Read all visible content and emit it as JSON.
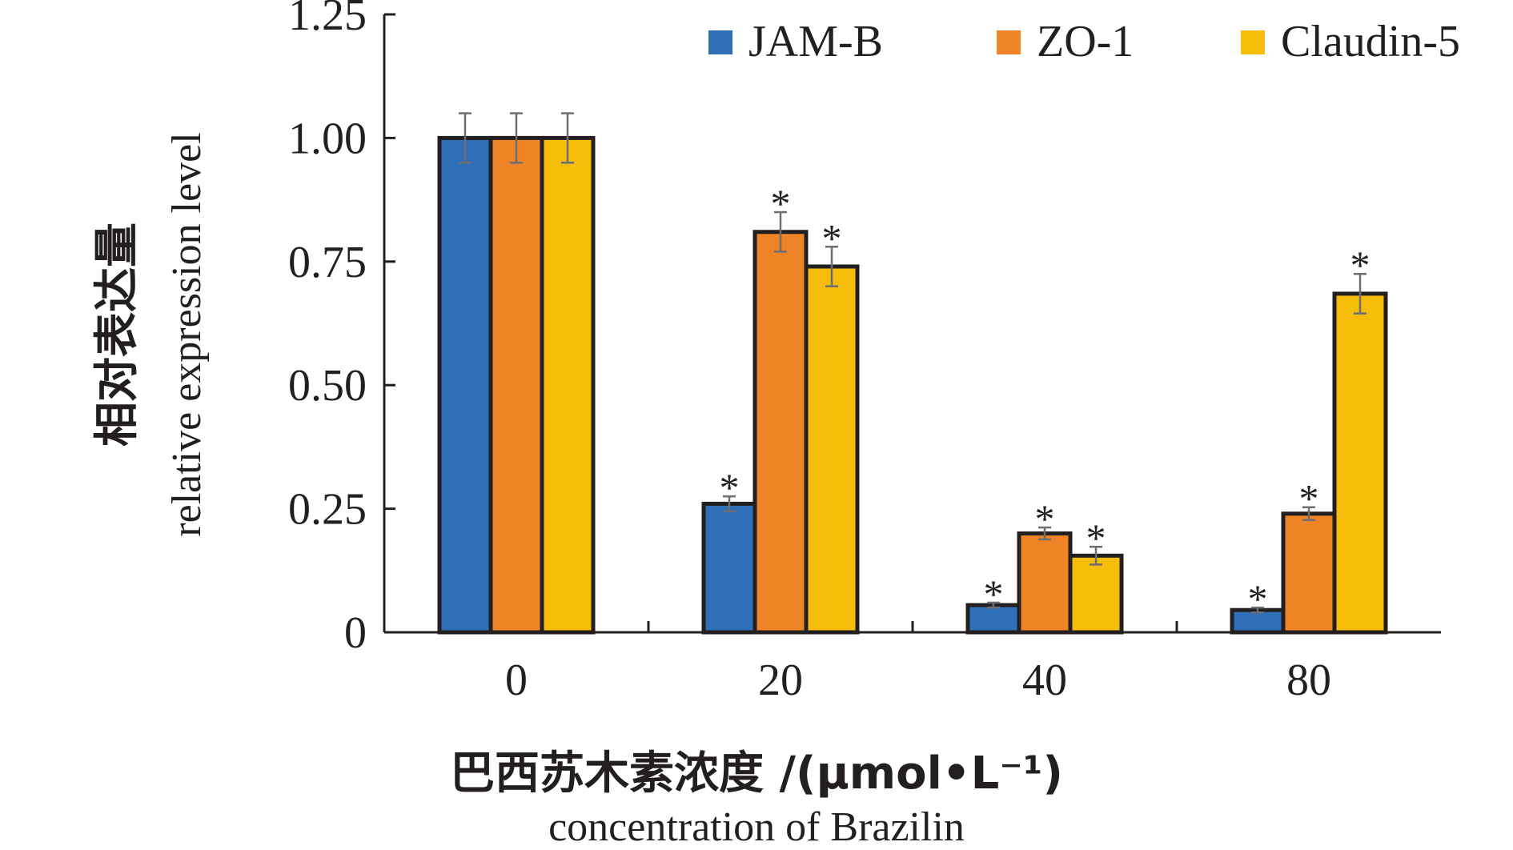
{
  "chart_data": {
    "type": "bar",
    "categories": [
      "0",
      "20",
      "40",
      "80"
    ],
    "series": [
      {
        "name": "JAM-B",
        "color": "#2e6fb7",
        "values": [
          1.0,
          0.26,
          0.055,
          0.045
        ],
        "errors": [
          0.05,
          0.015,
          0.005,
          0.005
        ],
        "significant": [
          false,
          true,
          true,
          true
        ]
      },
      {
        "name": "ZO-1",
        "color": "#ee8425",
        "values": [
          1.0,
          0.81,
          0.2,
          0.24
        ],
        "errors": [
          0.05,
          0.04,
          0.012,
          0.013
        ],
        "significant": [
          false,
          true,
          true,
          true
        ]
      },
      {
        "name": "Claudin-5",
        "color": "#f5bd0a",
        "values": [
          1.0,
          0.74,
          0.155,
          0.685
        ],
        "errors": [
          0.05,
          0.04,
          0.018,
          0.04
        ],
        "significant": [
          false,
          true,
          true,
          true
        ]
      }
    ],
    "ylim": [
      0,
      1.25
    ],
    "yticks": [
      "0",
      "0.25",
      "0.50",
      "0.75",
      "1.00",
      "1.25"
    ],
    "ylabel_cn": "相对表达量",
    "ylabel_en": "relative expression level",
    "xlabel_cn": "巴西苏木素浓度 /(μmol•L⁻¹)",
    "xlabel_en": "concentration of Brazilin",
    "significance_marker": "*",
    "legend_position": "top-right",
    "grid": false
  }
}
